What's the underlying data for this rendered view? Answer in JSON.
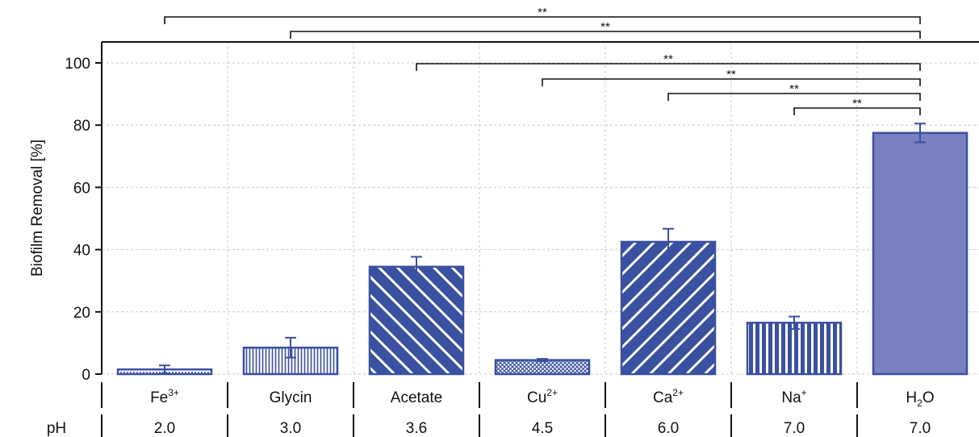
{
  "chart_data": {
    "type": "bar",
    "ylabel": "Biofilm Removal [%]",
    "ylim": [
      0,
      100
    ],
    "yticks": [
      0,
      20,
      40,
      60,
      80,
      100
    ],
    "grid": true,
    "categories": [
      {
        "base": "Fe",
        "sup": "3+",
        "sub": "",
        "tail": ""
      },
      {
        "base": "Glycin",
        "sup": "",
        "sub": "",
        "tail": ""
      },
      {
        "base": "Acetate",
        "sup": "",
        "sub": "",
        "tail": ""
      },
      {
        "base": "Cu",
        "sup": "2+",
        "sub": "",
        "tail": ""
      },
      {
        "base": "Ca",
        "sup": "2+",
        "sub": "",
        "tail": ""
      },
      {
        "base": "Na",
        "sup": "+",
        "sub": "",
        "tail": ""
      },
      {
        "base": "H",
        "sup": "",
        "sub": "2",
        "tail": "O"
      }
    ],
    "values": [
      1.5,
      8.5,
      34.5,
      4.5,
      42.5,
      16.5,
      77.5
    ],
    "errors": [
      1.3,
      3.2,
      3.2,
      0.4,
      4.2,
      2.0,
      3.0
    ],
    "patterns": [
      "dots",
      "vlines-fine",
      "diag-back",
      "crosshatch",
      "diag-fwd",
      "vlines-wide",
      "solid"
    ],
    "ph_label": "pH",
    "ph_values": [
      "2.0",
      "3.0",
      "3.6",
      "4.5",
      "6.0",
      "7.0",
      "7.0"
    ],
    "significance": [
      {
        "from": 0,
        "to": 6,
        "label": "**"
      },
      {
        "from": 1,
        "to": 6,
        "label": "**"
      },
      {
        "from": 2,
        "to": 6,
        "label": "**"
      },
      {
        "from": 3,
        "to": 6,
        "label": "**"
      },
      {
        "from": 4,
        "to": 6,
        "label": "**"
      },
      {
        "from": 5,
        "to": 6,
        "label": "**"
      }
    ],
    "colors": {
      "bar_stroke": "#3a50a0",
      "bar_fill": "#7a7fc0",
      "grid": "#c8c8c8",
      "axis": "#111111"
    }
  }
}
